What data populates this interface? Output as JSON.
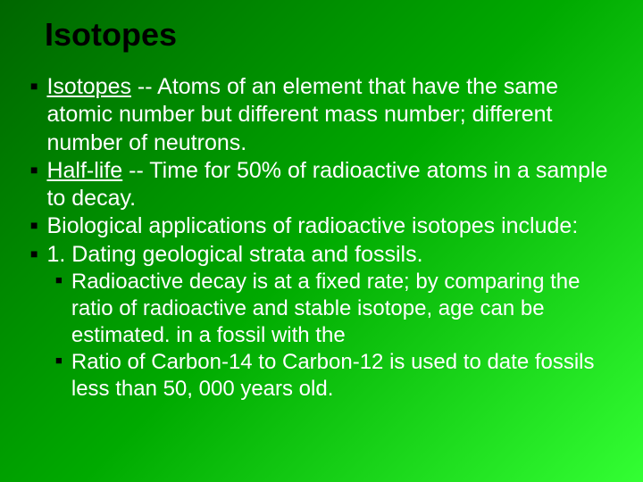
{
  "slide": {
    "title": "Isotopes",
    "title_fontsize": 36,
    "title_color": "#000000",
    "body_fontsize": 25,
    "sub_fontsize": 24,
    "text_color": "#ffffff",
    "bullet_color": "#000000",
    "background_gradient": [
      "#006600",
      "#00aa00",
      "#33ff33"
    ],
    "bullets": [
      {
        "term": "Isotopes",
        "rest": " -- Atoms of an element that have the same atomic number but different mass number; different number of neutrons."
      },
      {
        "term": "Half-life",
        "rest": " -- Time for 50% of radioactive atoms in a sample to decay."
      },
      {
        "text": "Biological applications of radioactive isotopes include:"
      },
      {
        "text": "1. Dating geological strata and fossils.",
        "subs": [
          {
            "text": "Radioactive decay is at a fixed rate; by comparing the ratio of radioactive and stable isotope, age can be estimated. in a fossil with the"
          },
          {
            "text": "Ratio of Carbon-14 to Carbon-12 is used to date fossils less than 50, 000 years old."
          }
        ]
      }
    ]
  }
}
